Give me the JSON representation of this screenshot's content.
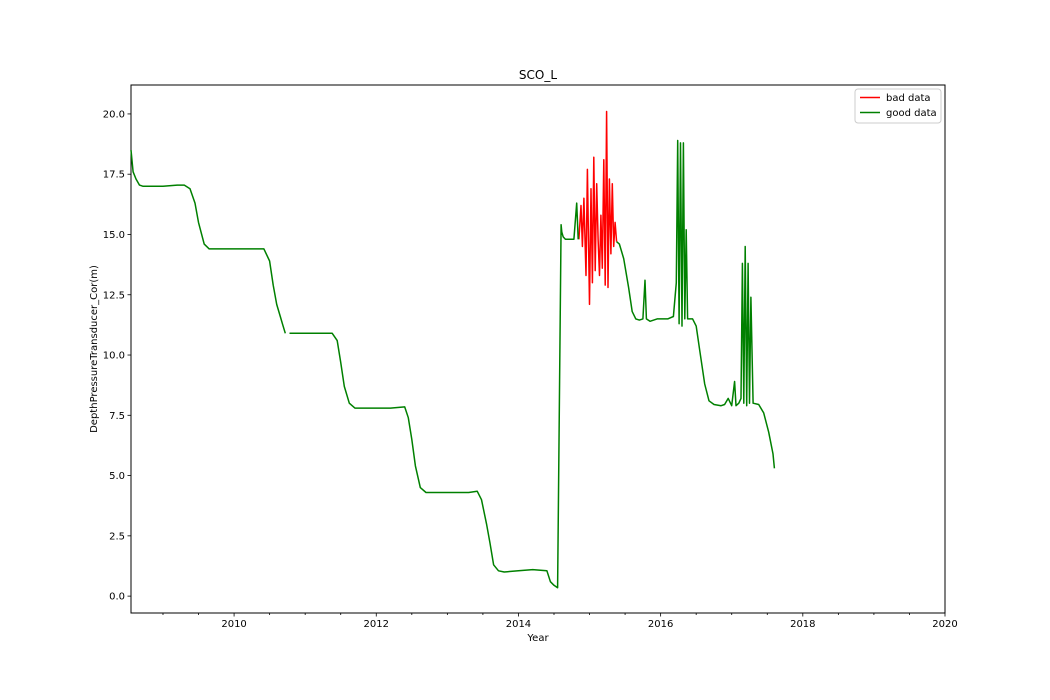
{
  "chart_data": {
    "type": "line",
    "title": "SCO_L",
    "xlabel": "Year",
    "ylabel": "DepthPressureTransducer_Cor(m)",
    "xlim": [
      2008.55,
      2020.0
    ],
    "ylim": [
      -0.7,
      21.2
    ],
    "xticks": [
      2010,
      2012,
      2014,
      2016,
      2018,
      2020
    ],
    "xtick_labels": [
      "2010",
      "2012",
      "2014",
      "2016",
      "2018",
      "2020"
    ],
    "yticks": [
      0.0,
      2.5,
      5.0,
      7.5,
      10.0,
      12.5,
      15.0,
      17.5,
      20.0
    ],
    "ytick_labels": [
      "0.0",
      "2.5",
      "5.0",
      "7.5",
      "10.0",
      "12.5",
      "15.0",
      "17.5",
      "20.0"
    ],
    "grid": false,
    "legend_position": "top-right",
    "series": [
      {
        "name": "bad data",
        "color": "#ff0000",
        "x": [
          2014.85,
          2014.88,
          2014.9,
          2014.92,
          2014.95,
          2014.97,
          2015.0,
          2015.02,
          2015.04,
          2015.06,
          2015.08,
          2015.1,
          2015.12,
          2015.14,
          2015.16,
          2015.18,
          2015.2,
          2015.22,
          2015.24,
          2015.26,
          2015.28,
          2015.3,
          2015.32,
          2015.34,
          2015.36,
          2015.38
        ],
        "y": [
          14.8,
          16.2,
          14.5,
          16.5,
          13.3,
          17.7,
          12.1,
          16.9,
          13.0,
          18.2,
          13.5,
          17.1,
          14.8,
          13.3,
          15.8,
          13.6,
          18.1,
          12.9,
          20.1,
          12.8,
          17.3,
          14.2,
          17.1,
          14.5,
          15.5,
          14.7
        ]
      },
      {
        "name": "good data",
        "color": "#008000",
        "x": [
          2008.55,
          2008.58,
          2008.62,
          2008.67,
          2008.72,
          2008.8,
          2009.0,
          2009.2,
          2009.3,
          2009.38,
          2009.45,
          2009.5,
          2009.58,
          2009.65,
          2010.0,
          2010.3,
          2010.42,
          2010.5,
          2010.55,
          2010.6,
          2010.65,
          2010.68,
          2010.72,
          null,
          2010.78,
          2011.0,
          2011.2,
          2011.38,
          2011.45,
          2011.5,
          2011.55,
          2011.62,
          2011.7,
          2012.0,
          2012.2,
          2012.4,
          2012.45,
          2012.5,
          2012.55,
          2012.62,
          2012.7,
          2012.8,
          2013.0,
          2013.3,
          2013.42,
          2013.48,
          2013.55,
          2013.6,
          2013.65,
          2013.72,
          2013.8,
          2014.0,
          2014.2,
          2014.4,
          2014.45,
          2014.5,
          2014.55,
          2014.6,
          2014.61,
          2014.63,
          2014.66,
          2014.7,
          2014.78,
          2014.82,
          2014.84,
          null,
          2015.38,
          2015.42,
          2015.48,
          2015.55,
          2015.6,
          2015.65,
          2015.7,
          2015.75,
          2015.78,
          2015.8,
          2015.85,
          2015.95,
          2016.1,
          2016.18,
          2016.22,
          2016.24,
          2016.26,
          2016.28,
          2016.3,
          2016.32,
          2016.34,
          2016.36,
          2016.38,
          2016.45,
          2016.5,
          2016.55,
          2016.62,
          2016.68,
          2016.75,
          2016.85,
          2016.9,
          2016.95,
          2017.0,
          2017.04,
          2017.06,
          2017.1,
          2017.13,
          2017.15,
          2017.17,
          2017.19,
          2017.21,
          2017.23,
          2017.25,
          2017.27,
          2017.3,
          2017.38,
          2017.45,
          2017.52,
          2017.58,
          2017.6
        ],
        "y": [
          18.5,
          17.6,
          17.3,
          17.05,
          17.0,
          17.0,
          17.0,
          17.05,
          17.05,
          16.9,
          16.3,
          15.5,
          14.6,
          14.4,
          14.4,
          14.4,
          14.4,
          13.9,
          12.9,
          12.1,
          11.6,
          11.3,
          10.9,
          null,
          10.9,
          10.9,
          10.9,
          10.9,
          10.6,
          9.7,
          8.7,
          8.0,
          7.8,
          7.8,
          7.8,
          7.85,
          7.4,
          6.5,
          5.4,
          4.5,
          4.3,
          4.3,
          4.3,
          4.3,
          4.35,
          4.0,
          3.0,
          2.2,
          1.3,
          1.05,
          1.0,
          1.05,
          1.1,
          1.05,
          0.6,
          0.45,
          0.35,
          15.4,
          15.1,
          14.9,
          14.8,
          14.8,
          14.8,
          16.3,
          14.8,
          null,
          14.7,
          14.6,
          14.0,
          12.8,
          11.8,
          11.5,
          11.45,
          11.5,
          13.1,
          11.5,
          11.4,
          11.5,
          11.5,
          11.6,
          13.0,
          18.9,
          11.3,
          18.8,
          11.2,
          18.8,
          11.5,
          15.2,
          11.5,
          11.5,
          11.2,
          10.2,
          8.8,
          8.1,
          7.95,
          7.9,
          7.95,
          8.2,
          7.9,
          8.9,
          7.9,
          8.0,
          8.2,
          13.8,
          8.0,
          14.5,
          7.9,
          13.8,
          8.0,
          12.4,
          8.0,
          7.95,
          7.6,
          6.8,
          5.9,
          5.3
        ]
      }
    ]
  }
}
